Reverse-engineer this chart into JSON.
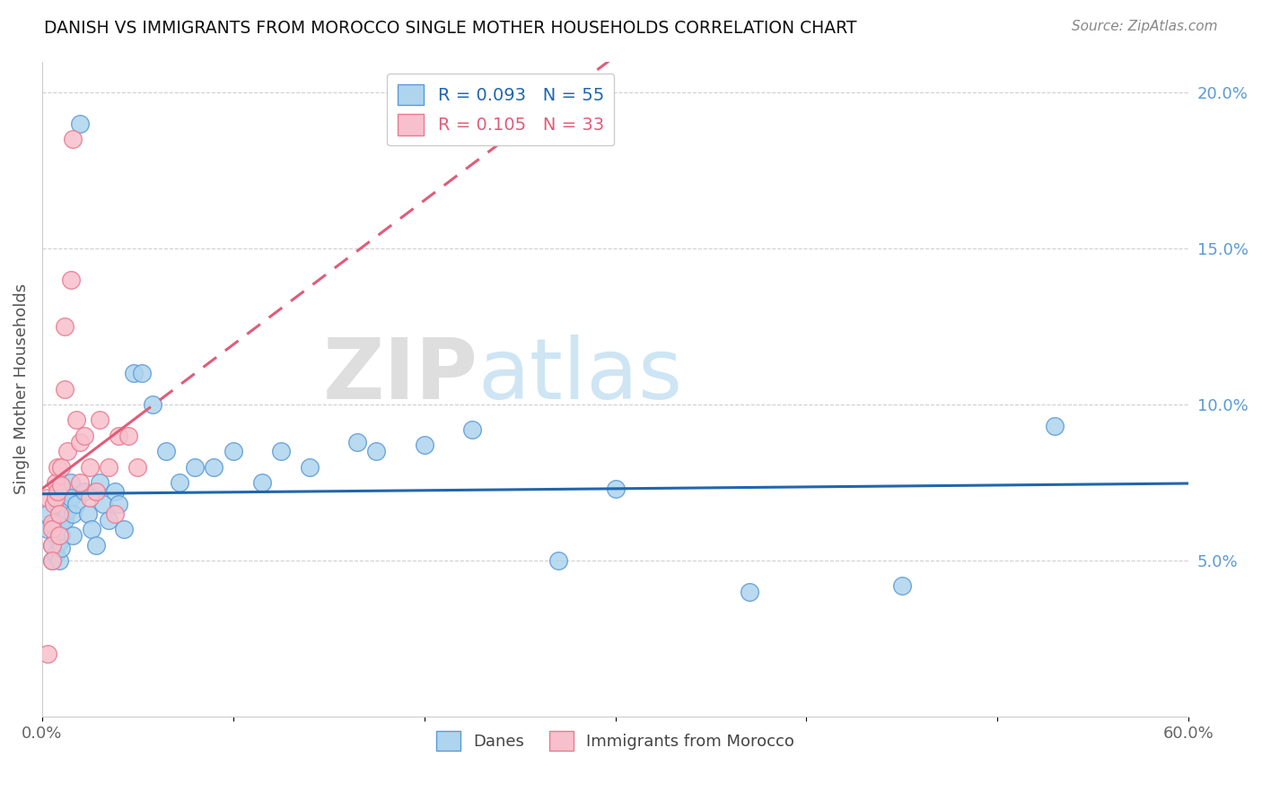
{
  "title": "DANISH VS IMMIGRANTS FROM MOROCCO SINGLE MOTHER HOUSEHOLDS CORRELATION CHART",
  "source": "Source: ZipAtlas.com",
  "ylabel": "Single Mother Households",
  "xlim": [
    0.0,
    0.6
  ],
  "ylim": [
    0.0,
    0.21
  ],
  "xticks": [
    0.0,
    0.1,
    0.2,
    0.3,
    0.4,
    0.5,
    0.6
  ],
  "xtick_labels": [
    "0.0%",
    "",
    "",
    "",
    "",
    "",
    "60.0%"
  ],
  "yticks_right": [
    0.05,
    0.1,
    0.15,
    0.2
  ],
  "ytick_right_labels": [
    "5.0%",
    "10.0%",
    "15.0%",
    "20.0%"
  ],
  "legend_blue_r": "R = 0.093",
  "legend_blue_n": "N = 55",
  "legend_pink_r": "R = 0.105",
  "legend_pink_n": "N = 33",
  "blue_fill": "#aed4ee",
  "blue_edge": "#5b9bd5",
  "pink_fill": "#f8c0cc",
  "pink_edge": "#e87a90",
  "blue_line_color": "#2166ac",
  "pink_line_color": "#e05c78",
  "danes_x": [
    0.003,
    0.003,
    0.005,
    0.005,
    0.007,
    0.007,
    0.007,
    0.008,
    0.008,
    0.009,
    0.009,
    0.01,
    0.01,
    0.01,
    0.01,
    0.012,
    0.012,
    0.013,
    0.013,
    0.015,
    0.015,
    0.016,
    0.016,
    0.018,
    0.02,
    0.022,
    0.024,
    0.026,
    0.028,
    0.03,
    0.032,
    0.035,
    0.038,
    0.04,
    0.043,
    0.048,
    0.052,
    0.058,
    0.065,
    0.072,
    0.08,
    0.09,
    0.1,
    0.115,
    0.125,
    0.14,
    0.165,
    0.175,
    0.2,
    0.225,
    0.27,
    0.3,
    0.37,
    0.45,
    0.53
  ],
  "danes_y": [
    0.065,
    0.06,
    0.055,
    0.05,
    0.062,
    0.058,
    0.052,
    0.068,
    0.06,
    0.056,
    0.05,
    0.068,
    0.062,
    0.058,
    0.054,
    0.07,
    0.063,
    0.072,
    0.066,
    0.075,
    0.07,
    0.065,
    0.058,
    0.068,
    0.19,
    0.072,
    0.065,
    0.06,
    0.055,
    0.075,
    0.068,
    0.063,
    0.072,
    0.068,
    0.06,
    0.11,
    0.11,
    0.1,
    0.085,
    0.075,
    0.08,
    0.08,
    0.085,
    0.075,
    0.085,
    0.08,
    0.088,
    0.085,
    0.087,
    0.092,
    0.05,
    0.073,
    0.04,
    0.042,
    0.093
  ],
  "morocco_x": [
    0.003,
    0.003,
    0.005,
    0.005,
    0.005,
    0.005,
    0.006,
    0.007,
    0.007,
    0.008,
    0.008,
    0.009,
    0.009,
    0.01,
    0.01,
    0.012,
    0.012,
    0.013,
    0.015,
    0.016,
    0.018,
    0.02,
    0.02,
    0.022,
    0.025,
    0.025,
    0.028,
    0.03,
    0.035,
    0.038,
    0.04,
    0.045,
    0.05
  ],
  "morocco_y": [
    0.02,
    0.07,
    0.062,
    0.06,
    0.055,
    0.05,
    0.068,
    0.075,
    0.07,
    0.08,
    0.072,
    0.065,
    0.058,
    0.08,
    0.074,
    0.125,
    0.105,
    0.085,
    0.14,
    0.185,
    0.095,
    0.088,
    0.075,
    0.09,
    0.08,
    0.07,
    0.072,
    0.095,
    0.08,
    0.065,
    0.09,
    0.09,
    0.08
  ]
}
